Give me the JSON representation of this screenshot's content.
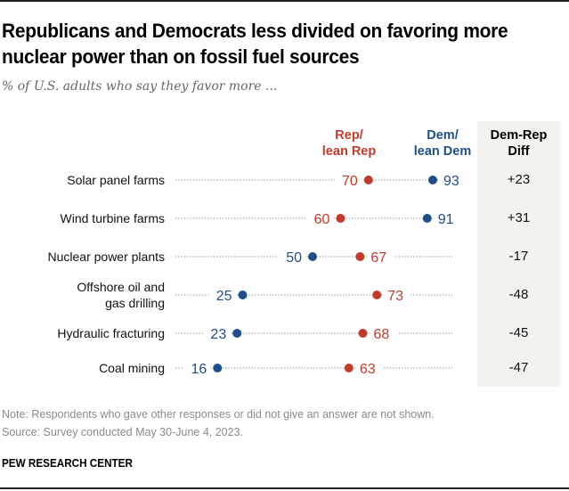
{
  "header": {
    "title": "Republicans and Democrats less divided on favoring more nuclear power than on fossil fuel sources",
    "subtitle": "% of U.S. adults who say they favor more ..."
  },
  "columns": {
    "rep_label_line1": "Rep/",
    "rep_label_line2": "lean Rep",
    "dem_label_line1": "Dem/",
    "dem_label_line2": "lean Dem",
    "diff_label_line1": "Dem-Rep",
    "diff_label_line2": "Diff"
  },
  "colors": {
    "rep": "#c13b2c",
    "dem": "#1f4e8a",
    "diff_bg": "#f3f2ef",
    "dotted_line": "#9a9a9a"
  },
  "chart_data": {
    "type": "dot-plot",
    "title": "Republicans and Democrats less divided on favoring more nuclear power than on fossil fuel sources",
    "subtitle": "% of U.S. adults who say they favor more ...",
    "xlim": [
      0,
      100
    ],
    "grid": false,
    "legend": "top-right",
    "categories": [
      [
        "Solar panel farms"
      ],
      [
        "Wind turbine farms"
      ],
      [
        "Nuclear power plants"
      ],
      [
        "Offshore oil and",
        "gas drilling"
      ],
      [
        "Hydraulic fracturing"
      ],
      [
        "Coal mining"
      ]
    ],
    "series": [
      {
        "name": "Rep/lean Rep",
        "values": [
          70,
          60,
          67,
          73,
          68,
          63
        ]
      },
      {
        "name": "Dem/lean Dem",
        "values": [
          93,
          91,
          50,
          25,
          23,
          16
        ]
      }
    ],
    "diff": [
      "+23",
      "+31",
      "-17",
      "-48",
      "-45",
      "-47"
    ]
  },
  "footer": {
    "note": "Note: Respondents who gave other responses or did not give an answer are not shown.",
    "source": "Source: Survey conducted May 30-June 4, 2023.",
    "brand": "PEW RESEARCH CENTER"
  }
}
